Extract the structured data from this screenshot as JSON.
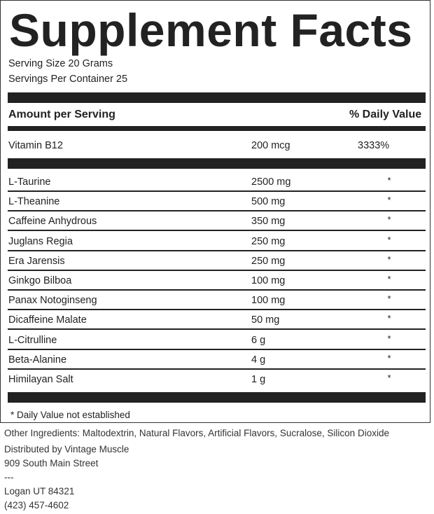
{
  "title": "Supplement Facts",
  "serving_size": "Serving Size 20 Grams",
  "servings_per_container": "Servings Per Container 25",
  "header": {
    "amount_label": "Amount per Serving",
    "dv_label": "% Daily Value"
  },
  "vitamins": [
    {
      "name": "Vitamin B12",
      "amount": "200 mcg",
      "dv": "3333%"
    }
  ],
  "ingredients": [
    {
      "name": "L-Taurine",
      "amount": "2500 mg",
      "dv": "*"
    },
    {
      "name": "L-Theanine",
      "amount": "500 mg",
      "dv": "*"
    },
    {
      "name": "Caffeine Anhydrous",
      "amount": "350 mg",
      "dv": "*"
    },
    {
      "name": "Juglans Regia",
      "amount": "250 mg",
      "dv": "*"
    },
    {
      "name": "Era Jarensis",
      "amount": "250 mg",
      "dv": "*"
    },
    {
      "name": "Ginkgo Bilboa",
      "amount": "100 mg",
      "dv": "*"
    },
    {
      "name": "Panax Notoginseng",
      "amount": "100 mg",
      "dv": "*"
    },
    {
      "name": "Dicaffeine Malate",
      "amount": "50 mg",
      "dv": "*"
    },
    {
      "name": "L-Citrulline",
      "amount": "6 g",
      "dv": "*"
    },
    {
      "name": "Beta-Alanine",
      "amount": "4 g",
      "dv": "*"
    },
    {
      "name": "Himilayan Salt",
      "amount": "1 g",
      "dv": "*"
    }
  ],
  "footnote": "* Daily Value not established",
  "other_ingredients": "Other Ingredients: Maltodextrin, Natural Flavors, Artificial Flavors, Sucralose, Silicon Dioxide",
  "distributor": {
    "line1": "Distributed by Vintage Muscle",
    "line2": "909 South Main Street",
    "line3": "---",
    "line4": "Logan UT 84321",
    "line5": "(423) 457-4602"
  }
}
